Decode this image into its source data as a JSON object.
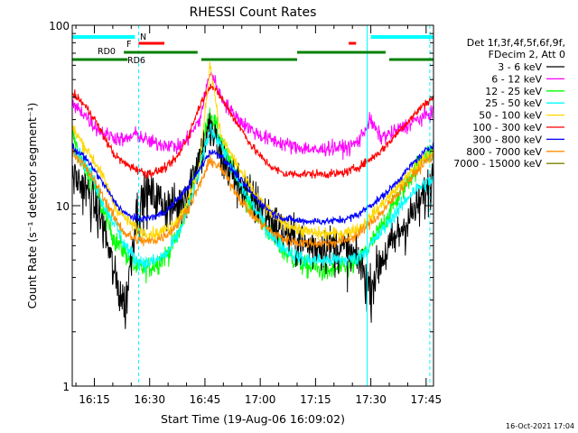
{
  "chart_data": {
    "type": "line",
    "title": "RHESSI Count Rates",
    "xlabel": "Start Time (19-Aug-06 16:09:02)",
    "ylabel": "Count Rate (s⁻¹ detector segment⁻¹)",
    "y_scale": "log",
    "ylim": [
      1,
      100
    ],
    "xlim_minutes_after_1609": [
      0,
      98
    ],
    "x_ticks": [
      "16:15",
      "16:30",
      "16:45",
      "17:00",
      "17:15",
      "17:30",
      "17:45"
    ],
    "y_ticks": [
      "1",
      "10",
      "100"
    ],
    "legend_header": [
      "Det 1f,3f,4f,5f,6f,9f,",
      "FDecim 2, Att 0"
    ],
    "legend_placement": "right",
    "footer_date": "16-Oct-2021 17:04",
    "vertical_lines": {
      "solid_cyan": [
        "16:09",
        "17:29"
      ],
      "dashed_cyan": [
        "16:27",
        "17:46"
      ]
    },
    "flag_bars": [
      {
        "label": "N",
        "color": "#00ffff",
        "segments": [
          [
            "16:09",
            "16:26"
          ],
          [
            "17:30",
            "17:47"
          ]
        ]
      },
      {
        "label": "F",
        "color": "#ff0000",
        "segments": [
          [
            "16:27",
            "16:34"
          ],
          [
            "17:24",
            "17:26"
          ]
        ]
      },
      {
        "label": "RD0",
        "color": "#008000",
        "segments": [
          [
            "16:23",
            "16:43"
          ],
          [
            "17:10",
            "17:34"
          ]
        ]
      },
      {
        "label": "RD6",
        "color": "#008000",
        "segments": [
          [
            "16:09",
            "16:24"
          ],
          [
            "16:44",
            "17:10"
          ],
          [
            "17:35",
            "17:47"
          ]
        ]
      }
    ],
    "series": [
      {
        "name": "3 - 6 keV",
        "color": "#000000",
        "noise": 0.22,
        "values": [
          15,
          13,
          10.5,
          7.5,
          4,
          2.8,
          9,
          12,
          11,
          10,
          10,
          13,
          19,
          27,
          19,
          15,
          13,
          11,
          9.5,
          8,
          7,
          6.5,
          6,
          6,
          6,
          6,
          5.5,
          5,
          3.5,
          5,
          6,
          7.5,
          9,
          11,
          15
        ]
      },
      {
        "name": "6 - 12 keV",
        "color": "#ff00ff",
        "noise": 0.07,
        "values": [
          36,
          33,
          28,
          25,
          24,
          23,
          25,
          23,
          22,
          22,
          21,
          24,
          30,
          56,
          40,
          33,
          29,
          26,
          24,
          23,
          22,
          21,
          21,
          20,
          21,
          21,
          21,
          23,
          30,
          24,
          25,
          27,
          29,
          31,
          33
        ]
      },
      {
        "name": "12 - 25 keV",
        "color": "#00ff00",
        "noise": 0.1,
        "values": [
          25,
          17,
          13,
          9,
          6.5,
          5.5,
          4.5,
          4.5,
          4.8,
          5.5,
          7,
          11,
          19,
          33,
          23,
          16,
          12,
          9.5,
          8,
          6.5,
          5.5,
          5,
          4.6,
          4.5,
          4.3,
          4.5,
          4.5,
          5,
          6,
          7.5,
          9.5,
          12,
          15,
          19,
          20
        ]
      },
      {
        "name": "25 - 50 keV",
        "color": "#00ffff",
        "noise": 0.07,
        "values": [
          22,
          18,
          14,
          10,
          8,
          6,
          5,
          4.8,
          5,
          5.5,
          7,
          10,
          16,
          27,
          22,
          16,
          12.5,
          10,
          8,
          6.5,
          5.8,
          5.3,
          5,
          5,
          5,
          5,
          5,
          5.2,
          6,
          7,
          8.5,
          10,
          12,
          13,
          14
        ]
      },
      {
        "name": "50 - 100 keV",
        "color": "#ffd700",
        "noise": 0.06,
        "values": [
          27,
          22,
          18,
          14,
          10,
          8.5,
          7.5,
          7,
          7,
          7.5,
          8.5,
          11,
          17,
          62,
          24,
          19,
          15,
          12,
          10,
          8.8,
          8,
          7.5,
          7.2,
          7,
          7,
          7,
          7.2,
          7.5,
          8.5,
          10,
          11.5,
          13.5,
          15.5,
          18,
          20
        ]
      },
      {
        "name": "100 - 300 keV",
        "color": "#ff0000",
        "noise": 0.04,
        "values": [
          42,
          37,
          31,
          24,
          19,
          17,
          16,
          15,
          15.5,
          16.5,
          19,
          25,
          36,
          47,
          40,
          32,
          26,
          21,
          18,
          16,
          15,
          15,
          15,
          15,
          15,
          15,
          15.5,
          16.5,
          18,
          20,
          23,
          27,
          31,
          36,
          40
        ]
      },
      {
        "name": "300 - 800 keV",
        "color": "#0000ff",
        "noise": 0.035,
        "values": [
          21,
          19,
          16,
          13,
          10.5,
          9,
          8.5,
          8.5,
          8.8,
          9.5,
          11,
          13,
          16,
          20,
          19,
          16,
          13.5,
          11.5,
          10,
          9,
          8.5,
          8.3,
          8.2,
          8.2,
          8.2,
          8.3,
          8.5,
          9,
          10,
          11,
          12.5,
          14.5,
          17,
          19.5,
          22
        ]
      },
      {
        "name": "800 - 7000 keV",
        "color": "#ff8c00",
        "noise": 0.05,
        "values": [
          20,
          17,
          14,
          11,
          8.5,
          7,
          6.5,
          6.3,
          6.5,
          7,
          8,
          10,
          13,
          18,
          16,
          13,
          10.5,
          8.8,
          7.8,
          7,
          6.5,
          6.3,
          6.2,
          6.2,
          6.2,
          6.3,
          6.5,
          7,
          8,
          9,
          10.5,
          12.5,
          14.5,
          17,
          19
        ]
      },
      {
        "name": "7000 - 15000 keV",
        "color": "#808000",
        "noise": 0.03,
        "values": [
          null
        ]
      }
    ]
  }
}
